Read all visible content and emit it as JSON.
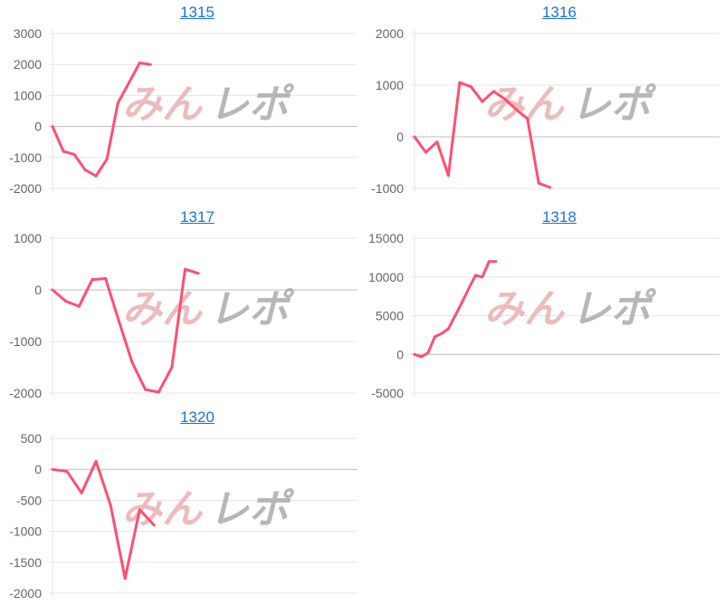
{
  "line_color": "#ff5070",
  "watermark": {
    "part1": "みん",
    "part2": "レポ",
    "color1": "#e8aaaa",
    "color2": "#aaaaaa"
  },
  "chart_data": [
    {
      "type": "line",
      "title": "1315",
      "xlim": [
        0,
        28
      ],
      "ylim": [
        -2000,
        3000
      ],
      "yticks": [
        3000,
        2000,
        1000,
        0,
        -1000,
        -2000
      ],
      "grid": true,
      "x": [
        0,
        1,
        2,
        3,
        4,
        5,
        6,
        7,
        8,
        9
      ],
      "values": [
        0,
        -800,
        -900,
        -1400,
        -1600,
        -1050,
        750,
        1400,
        2050,
        2000
      ]
    },
    {
      "type": "line",
      "title": "1316",
      "xlim": [
        0,
        27
      ],
      "ylim": [
        -1000,
        2000
      ],
      "yticks": [
        2000,
        1000,
        0,
        -1000
      ],
      "grid": true,
      "x": [
        0,
        1,
        2,
        3,
        4,
        5,
        6,
        7,
        8,
        9,
        10,
        11,
        12
      ],
      "values": [
        0,
        -300,
        -100,
        -750,
        1050,
        970,
        680,
        880,
        730,
        530,
        350,
        -900,
        -980
      ]
    },
    {
      "type": "line",
      "title": "1317",
      "xlim": [
        0,
        23
      ],
      "ylim": [
        -2000,
        1000
      ],
      "yticks": [
        1000,
        0,
        -1000,
        -2000
      ],
      "grid": true,
      "x": [
        0,
        1,
        2,
        3,
        4,
        5,
        6,
        7,
        8,
        9,
        10,
        11
      ],
      "values": [
        0,
        -220,
        -320,
        200,
        220,
        -600,
        -1400,
        -1930,
        -1980,
        -1500,
        400,
        320
      ]
    },
    {
      "type": "line",
      "title": "1318",
      "xlim": [
        0,
        45
      ],
      "ylim": [
        -5000,
        15000
      ],
      "yticks": [
        15000,
        10000,
        5000,
        0,
        -5000
      ],
      "grid": true,
      "x": [
        0,
        1,
        2,
        3,
        4,
        5,
        6,
        7,
        8,
        9,
        10,
        11,
        12
      ],
      "values": [
        0,
        -300,
        200,
        2300,
        2700,
        3300,
        5000,
        6700,
        8500,
        10200,
        10000,
        12000,
        12000
      ]
    },
    {
      "type": "line",
      "title": "1320",
      "xlim": [
        0,
        21
      ],
      "ylim": [
        -2000,
        500
      ],
      "yticks": [
        500,
        0,
        -500,
        -1000,
        -1500,
        -2000
      ],
      "grid": true,
      "x": [
        0,
        1,
        2,
        3,
        4,
        5,
        6,
        7
      ],
      "values": [
        0,
        -30,
        -380,
        130,
        -580,
        -1760,
        -650,
        -900
      ]
    }
  ]
}
